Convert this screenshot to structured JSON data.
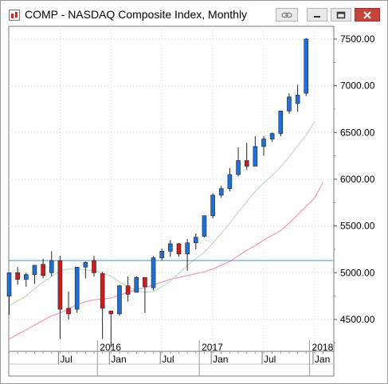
{
  "window": {
    "title": "COMP - NASDAQ Composite Index, Monthly",
    "buttons": [
      "link",
      "minimize",
      "maximize",
      "close"
    ]
  },
  "chart_data": {
    "type": "candlestick",
    "y_ticks": [
      "7500.00",
      "7000.00",
      "6500.00",
      "6000.00",
      "5500.00",
      "5000.00",
      "4500.00"
    ],
    "x_year_labels": [
      "2016",
      "2017",
      "2018"
    ],
    "x_month_labels": [
      "Jul",
      "Jan",
      "Jul",
      "Jan",
      "Jul",
      "Jan"
    ],
    "reference_level": 5130,
    "colors": {
      "up": "#1f6fd6",
      "down": "#c81e1e",
      "ma_fast": "#bfe0bf",
      "ma_slow": "#f0a0bf",
      "level": "#4aa3df"
    },
    "candles": [
      {
        "o": 4750,
        "h": 5000,
        "l": 4550,
        "c": 5000
      },
      {
        "o": 5000,
        "h": 5060,
        "l": 4870,
        "c": 4930
      },
      {
        "o": 4930,
        "h": 5000,
        "l": 4850,
        "c": 4980
      },
      {
        "o": 4980,
        "h": 5080,
        "l": 4880,
        "c": 5080
      },
      {
        "o": 5090,
        "h": 5150,
        "l": 4940,
        "c": 4970
      },
      {
        "o": 5000,
        "h": 5230,
        "l": 4960,
        "c": 5130
      },
      {
        "o": 5130,
        "h": 5180,
        "l": 4290,
        "c": 4610
      },
      {
        "o": 4620,
        "h": 4800,
        "l": 4500,
        "c": 4560
      },
      {
        "o": 4610,
        "h": 5060,
        "l": 4570,
        "c": 5060
      },
      {
        "o": 5060,
        "h": 5120,
        "l": 4940,
        "c": 5110
      },
      {
        "o": 5130,
        "h": 5180,
        "l": 4960,
        "c": 5000
      },
      {
        "o": 4990,
        "h": 5010,
        "l": 4290,
        "c": 4620
      },
      {
        "o": 4590,
        "h": 4590,
        "l": 4200,
        "c": 4560
      },
      {
        "o": 4560,
        "h": 4870,
        "l": 4540,
        "c": 4860
      },
      {
        "o": 4860,
        "h": 4960,
        "l": 4690,
        "c": 4770
      },
      {
        "o": 4790,
        "h": 4960,
        "l": 4790,
        "c": 4950
      },
      {
        "o": 4950,
        "h": 4950,
        "l": 4570,
        "c": 4850
      },
      {
        "o": 4840,
        "h": 5180,
        "l": 4810,
        "c": 5160
      },
      {
        "o": 5160,
        "h": 5260,
        "l": 5130,
        "c": 5230
      },
      {
        "o": 5230,
        "h": 5350,
        "l": 5170,
        "c": 5310
      },
      {
        "o": 5310,
        "h": 5320,
        "l": 5170,
        "c": 5200
      },
      {
        "o": 5200,
        "h": 5360,
        "l": 5020,
        "c": 5320
      },
      {
        "o": 5320,
        "h": 5420,
        "l": 5250,
        "c": 5380
      },
      {
        "o": 5390,
        "h": 5610,
        "l": 5380,
        "c": 5610
      },
      {
        "o": 5610,
        "h": 5850,
        "l": 5580,
        "c": 5830
      },
      {
        "o": 5830,
        "h": 5930,
        "l": 5800,
        "c": 5900
      },
      {
        "o": 5900,
        "h": 6120,
        "l": 5870,
        "c": 6050
      },
      {
        "o": 6050,
        "h": 6340,
        "l": 6030,
        "c": 6200
      },
      {
        "o": 6200,
        "h": 6390,
        "l": 6100,
        "c": 6140
      },
      {
        "o": 6140,
        "h": 6460,
        "l": 6140,
        "c": 6350
      },
      {
        "o": 6350,
        "h": 6460,
        "l": 6250,
        "c": 6430
      },
      {
        "o": 6430,
        "h": 6500,
        "l": 6400,
        "c": 6490
      },
      {
        "o": 6490,
        "h": 6730,
        "l": 6460,
        "c": 6730
      },
      {
        "o": 6730,
        "h": 6920,
        "l": 6700,
        "c": 6880
      },
      {
        "o": 6810,
        "h": 7010,
        "l": 6720,
        "c": 6900
      },
      {
        "o": 6920,
        "h": 7510,
        "l": 6890,
        "c": 7500
      }
    ],
    "ma_fast": [
      4650,
      4700,
      4750,
      4830,
      4900,
      4960,
      5020,
      5040,
      5040,
      5030,
      5020,
      5000,
      4960,
      4900,
      4850,
      4810,
      4790,
      4800,
      4850,
      4910,
      4990,
      5080,
      5150,
      5220,
      5320,
      5420,
      5530,
      5650,
      5760,
      5870,
      5960,
      6040,
      6130,
      6240,
      6360,
      6470,
      6620
    ],
    "ma_slow": [
      4290,
      4340,
      4390,
      4440,
      4490,
      4540,
      4570,
      4610,
      4660,
      4690,
      4710,
      4720,
      4730,
      4760,
      4790,
      4820,
      4840,
      4870,
      4900,
      4930,
      4950,
      4970,
      4990,
      5010,
      5040,
      5080,
      5120,
      5180,
      5240,
      5290,
      5350,
      5400,
      5450,
      5530,
      5620,
      5710,
      5800,
      5970
    ]
  }
}
